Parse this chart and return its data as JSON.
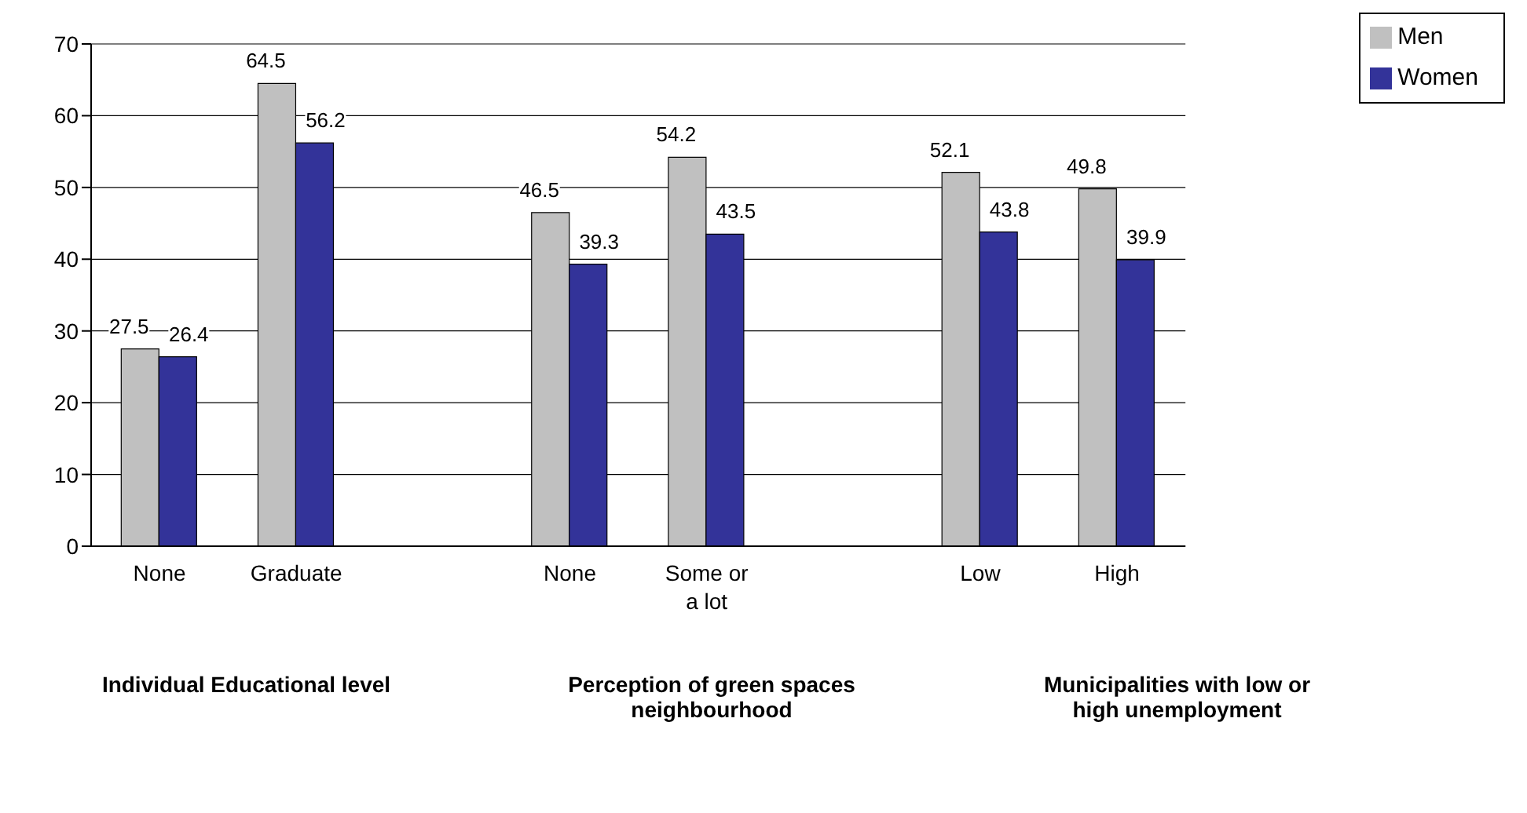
{
  "chart_data": {
    "type": "bar",
    "categories": [
      "None",
      "Graduate",
      null,
      "None",
      "Some or a lot",
      null,
      "Low",
      "High"
    ],
    "series": [
      {
        "name": "Men",
        "color": "#c0c0c0",
        "values": [
          27.5,
          64.5,
          null,
          46.5,
          54.2,
          null,
          52.1,
          49.8
        ]
      },
      {
        "name": "Women",
        "color": "#333399",
        "values": [
          26.4,
          56.2,
          null,
          39.3,
          43.5,
          null,
          43.8,
          39.9
        ]
      }
    ],
    "ylim": [
      0,
      70
    ],
    "yticks": [
      0,
      10,
      20,
      30,
      40,
      50,
      60,
      70
    ],
    "grid": "y",
    "legend": "top right",
    "data_labels": true,
    "annotations": [
      "Individual Educational level",
      "Perception of green spaces neighbourhood",
      "Municipalities with low or high unemployment"
    ]
  }
}
